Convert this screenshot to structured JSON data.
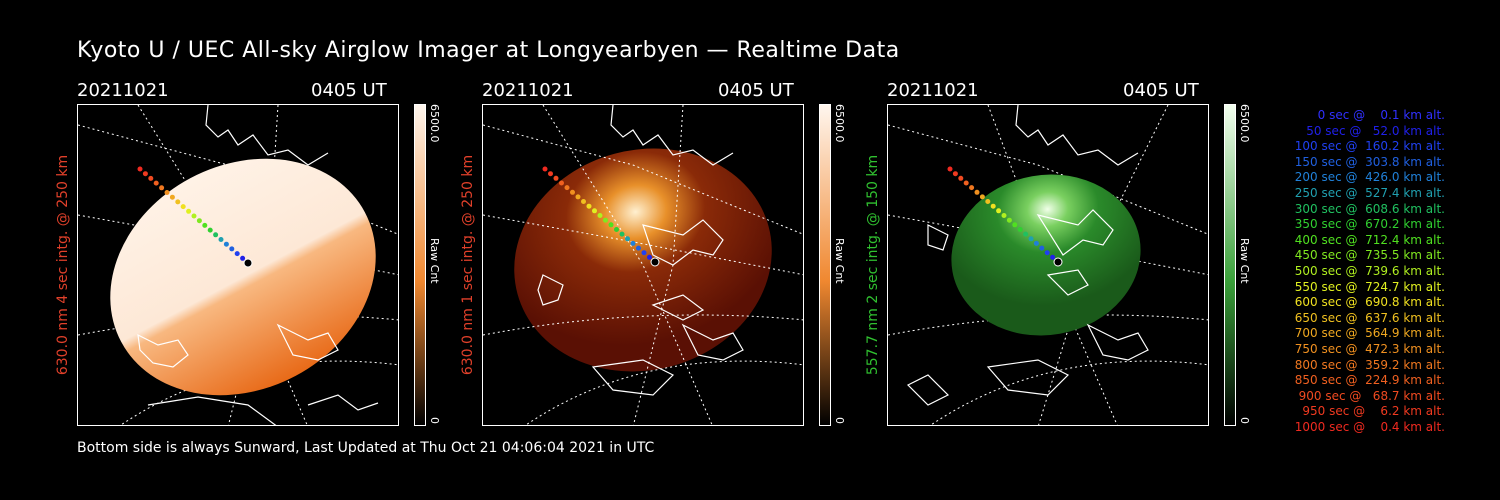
{
  "title": "Kyoto U / UEC All-sky Airglow Imager at Longyearbyen — Realtime Data",
  "footer": "Bottom side is always Sunward, Last Updated at Thu Oct 21 04:06:04 2021 in UTC",
  "panels": [
    {
      "date": "20211021",
      "time": "0405 UT",
      "side_label": "630.0 nm 4 sec intg. @ 250 km",
      "label_color": "#e0402a",
      "colorbar_max": "6500.0",
      "colorbar_unit": "Raw Cnt",
      "colorbar_min": "0",
      "colorbar_top": "#fff6ee",
      "colorbar_mid": "#f08830",
      "colorbar_bottom": "#000000"
    },
    {
      "date": "20211021",
      "time": "0405 UT",
      "side_label": "630.0 nm 1 sec intg. @ 250 km",
      "label_color": "#e0402a",
      "colorbar_max": "6500.0",
      "colorbar_unit": "Raw Cnt",
      "colorbar_min": "0",
      "colorbar_top": "#fff6ee",
      "colorbar_mid": "#f08830",
      "colorbar_bottom": "#000000"
    },
    {
      "date": "20211021",
      "time": "0405 UT",
      "side_label": "557.7 nm 2 sec intg. @ 150 km",
      "label_color": "#30c030",
      "colorbar_max": "6500.0",
      "colorbar_unit": "Raw Cnt",
      "colorbar_min": "0",
      "colorbar_top": "#f4fff0",
      "colorbar_mid": "#3aa03a",
      "colorbar_bottom": "#000000"
    }
  ],
  "legend": [
    {
      "text": "   0 sec @    0.1 km alt.",
      "color": "#3030ff"
    },
    {
      "text": "  50 sec @   52.0 km alt.",
      "color": "#2020e8"
    },
    {
      "text": " 100 sec @  160.2 km alt.",
      "color": "#2040f0"
    },
    {
      "text": " 150 sec @  303.8 km alt.",
      "color": "#2060e0"
    },
    {
      "text": " 200 sec @  426.0 km alt.",
      "color": "#2080d8"
    },
    {
      "text": " 250 sec @  527.4 km alt.",
      "color": "#20a0b0"
    },
    {
      "text": " 300 sec @  608.6 km alt.",
      "color": "#20c060"
    },
    {
      "text": " 350 sec @  670.2 km alt.",
      "color": "#30d030"
    },
    {
      "text": " 400 sec @  712.4 km alt.",
      "color": "#50e020"
    },
    {
      "text": " 450 sec @  735.5 km alt.",
      "color": "#80e820"
    },
    {
      "text": " 500 sec @  739.6 km alt.",
      "color": "#b0f020"
    },
    {
      "text": " 550 sec @  724.7 km alt.",
      "color": "#e0f020"
    },
    {
      "text": " 600 sec @  690.8 km alt.",
      "color": "#f0e020"
    },
    {
      "text": " 650 sec @  637.6 km alt.",
      "color": "#f0c020"
    },
    {
      "text": " 700 sec @  564.9 km alt.",
      "color": "#f0a820"
    },
    {
      "text": " 750 sec @  472.3 km alt.",
      "color": "#f09020"
    },
    {
      "text": " 800 sec @  359.2 km alt.",
      "color": "#f07820"
    },
    {
      "text": " 850 sec @  224.9 km alt.",
      "color": "#f06020"
    },
    {
      "text": " 900 sec @   68.7 km alt.",
      "color": "#f04a20"
    },
    {
      "text": " 950 sec @    6.2 km alt.",
      "color": "#f03a20"
    },
    {
      "text": "1000 sec @    0.4 km alt.",
      "color": "#f02a20"
    }
  ]
}
